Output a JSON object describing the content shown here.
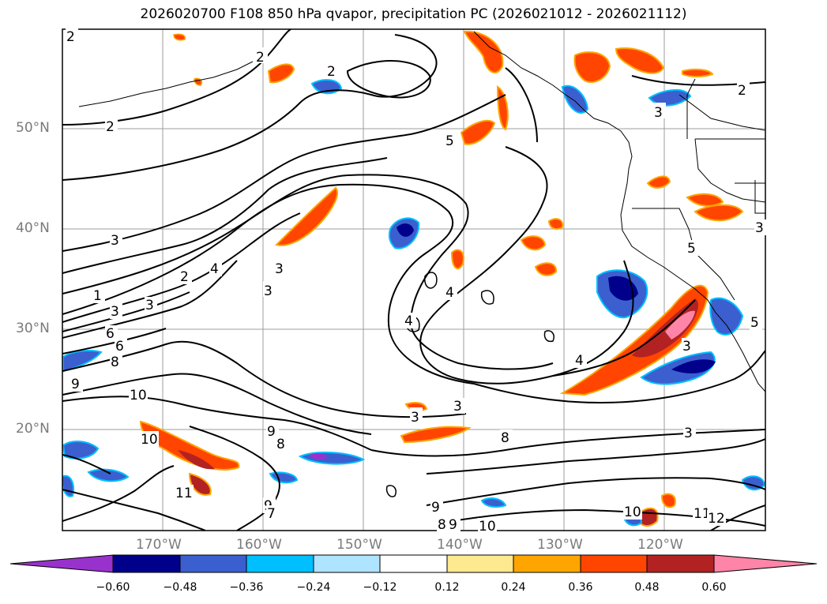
{
  "title": "2026020700 F108 850 hPa qvapor, precipitation PC (2026021012 - 2026021112)",
  "latitude_labels": [
    "50°N",
    "40°N",
    "30°N",
    "20°N"
  ],
  "longitude_labels": [
    "170°W",
    "160°W",
    "150°W",
    "140°W",
    "130°W",
    "120°W"
  ],
  "colorbar": {
    "ticks": [
      "−0.60",
      "−0.48",
      "−0.36",
      "−0.24",
      "−0.12",
      "0.12",
      "0.24",
      "0.36",
      "0.48",
      "0.60"
    ],
    "colors": [
      "#9932cc",
      "#00008b",
      "#3b5fcf",
      "#00bfff",
      "#aee4ff",
      "#ffffff",
      "#fde98f",
      "#ffa500",
      "#ff4500",
      "#b22222",
      "#ff85a8"
    ]
  },
  "contour_labels": [
    "2",
    "2",
    "2",
    "2",
    "2",
    "3",
    "5",
    "3",
    "3",
    "4",
    "2",
    "3",
    "1",
    "3",
    "3",
    "6",
    "6",
    "8",
    "9",
    "10",
    "4",
    "4",
    "4",
    "3",
    "3",
    "3",
    "9",
    "8",
    "8",
    "10",
    "11",
    "9",
    "7",
    "9",
    "8",
    "9",
    "10",
    "10",
    "11",
    "12",
    "5",
    "5",
    "3",
    "3"
  ],
  "chart_data": {
    "type": "heatmap",
    "title": "2026020700 F108 850 hPa qvapor, precipitation PC (2026021012 - 2026021112)",
    "fields": [
      "850 hPa qvapor (contours)",
      "precipitation PC (shaded)"
    ],
    "contour_levels": [
      1,
      2,
      3,
      4,
      5,
      6,
      7,
      8,
      9,
      10,
      11,
      12
    ],
    "shading_levels": [
      -0.6,
      -0.48,
      -0.36,
      -0.24,
      -0.12,
      0.12,
      0.24,
      0.36,
      0.48,
      0.6
    ],
    "lon_range": [
      -180,
      -110
    ],
    "lat_range": [
      10,
      60
    ],
    "grid": true
  }
}
